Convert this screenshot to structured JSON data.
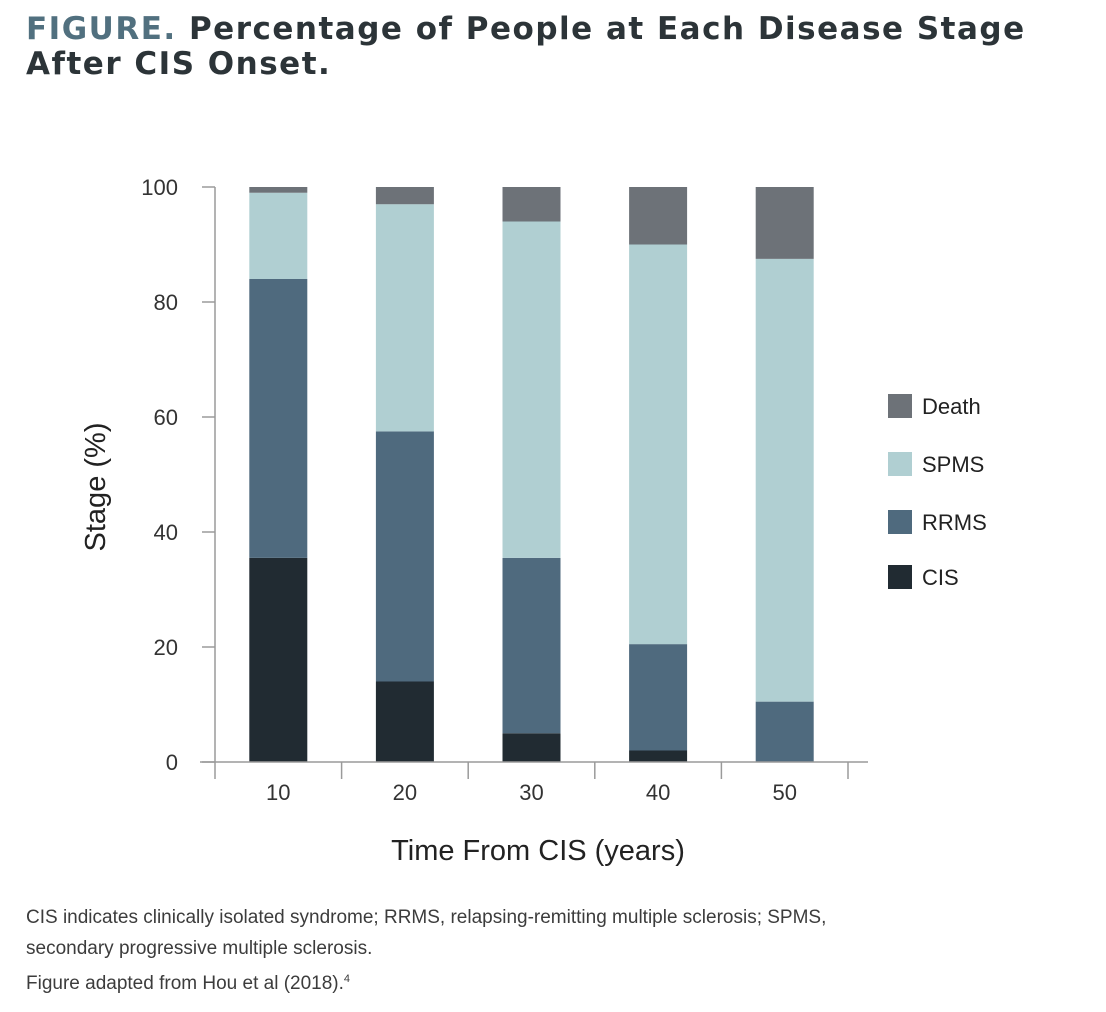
{
  "header": {
    "lead": "FIGURE.",
    "title": "Percentage of People at Each Disease Stage After CIS Onset."
  },
  "chart_data": {
    "type": "bar",
    "stacked": true,
    "categories": [
      "10",
      "20",
      "30",
      "40",
      "50"
    ],
    "series": [
      {
        "name": "CIS",
        "color": "#212b32",
        "values": [
          35.5,
          14.0,
          5.0,
          2.0,
          0.0
        ]
      },
      {
        "name": "RRMS",
        "color": "#4f6a7e",
        "values": [
          48.5,
          43.5,
          30.5,
          18.5,
          10.5
        ]
      },
      {
        "name": "SPMS",
        "color": "#b0cfd2",
        "values": [
          15.0,
          39.5,
          58.5,
          69.5,
          77.0
        ]
      },
      {
        "name": "Death",
        "color": "#6d7278",
        "values": [
          1.0,
          3.0,
          6.0,
          10.0,
          12.5
        ]
      }
    ],
    "xlabel": "Time From CIS (years)",
    "ylabel": "Stage (%)",
    "ylim": [
      0,
      100
    ],
    "yticks": [
      0,
      20,
      40,
      60,
      80,
      100
    ],
    "grid": false,
    "legend": {
      "position": "right",
      "order": [
        "Death",
        "SPMS",
        "RRMS",
        "CIS"
      ]
    }
  },
  "caption": {
    "line1": "CIS indicates clinically isolated syndrome; RRMS, relapsing-remitting multiple sclerosis; SPMS,",
    "line2": "secondary progressive multiple sclerosis.",
    "line3": "Figure adapted from Hou et al (2018).",
    "ref": "4"
  }
}
